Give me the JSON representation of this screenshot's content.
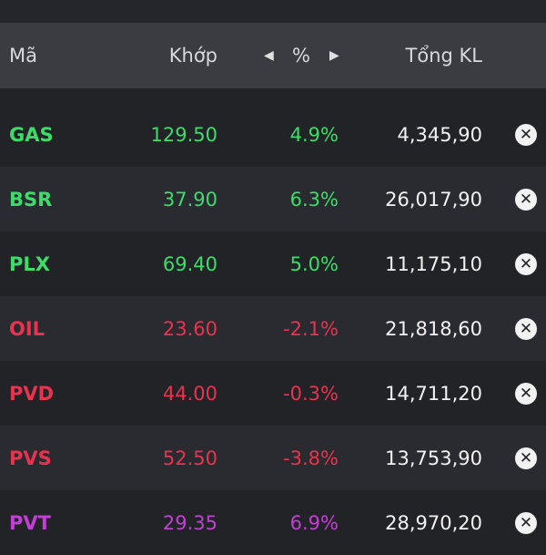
{
  "colors": {
    "up": "#3ddc6a",
    "down": "#e8334f",
    "ceiling": "#c33fd6"
  },
  "header": {
    "symbol": "Mã",
    "price": "Khớp",
    "pct": "%",
    "volume": "Tổng KL",
    "prev_icon": "triangle-left-icon",
    "next_icon": "triangle-right-icon"
  },
  "rows": [
    {
      "symbol": "GAS",
      "price": "129.50",
      "pct": "4.9%",
      "volume": "4,345,90",
      "status": "up"
    },
    {
      "symbol": "BSR",
      "price": "37.90",
      "pct": "6.3%",
      "volume": "26,017,90",
      "status": "up"
    },
    {
      "symbol": "PLX",
      "price": "69.40",
      "pct": "5.0%",
      "volume": "11,175,10",
      "status": "up"
    },
    {
      "symbol": "OIL",
      "price": "23.60",
      "pct": "-2.1%",
      "volume": "21,818,60",
      "status": "down"
    },
    {
      "symbol": "PVD",
      "price": "44.00",
      "pct": "-0.3%",
      "volume": "14,711,20",
      "status": "down"
    },
    {
      "symbol": "PVS",
      "price": "52.50",
      "pct": "-3.8%",
      "volume": "13,753,90",
      "status": "down"
    },
    {
      "symbol": "PVT",
      "price": "29.35",
      "pct": "6.9%",
      "volume": "28,970,20",
      "status": "ceiling"
    }
  ],
  "remove_icon": "close-circle-icon"
}
